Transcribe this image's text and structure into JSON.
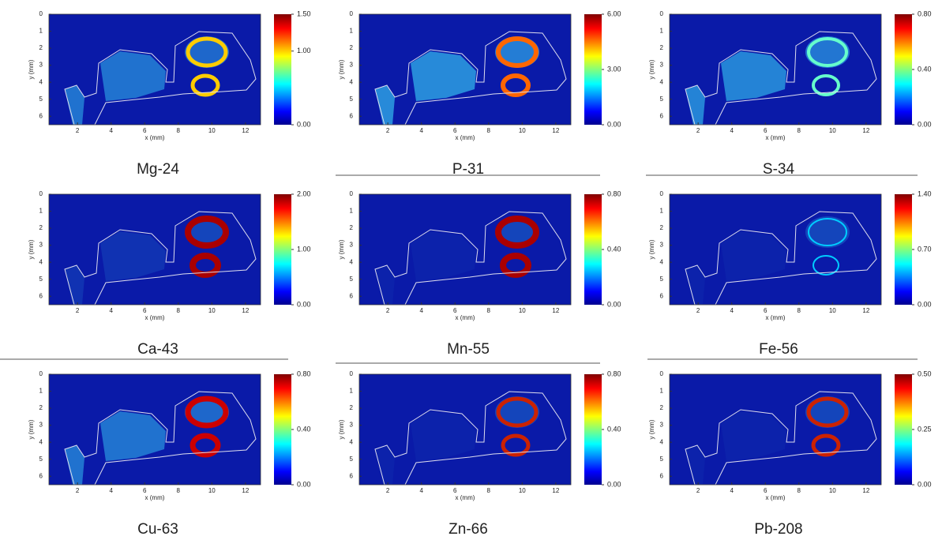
{
  "chart_data": [
    {
      "type": "heatmap",
      "title": "Mg-24",
      "xlabel": "x (mm)",
      "ylabel": "y (mm)",
      "xlim": [
        0.3,
        12.9
      ],
      "xticks": [
        2,
        4,
        6,
        8,
        10,
        12
      ],
      "ylim": [
        0,
        6.5
      ],
      "y_inverted": true,
      "yticks": [
        0,
        1,
        2,
        3,
        4,
        5,
        6
      ],
      "clim": [
        0,
        1.5
      ],
      "cticks": [
        {
          "value": 0,
          "label": "0.00"
        },
        {
          "value": 1,
          "label": "1.00"
        },
        {
          "value": 1.5,
          "label": "1.50"
        }
      ]
    },
    {
      "type": "heatmap",
      "title": "P-31",
      "xlabel": "x (mm)",
      "ylabel": "y (mm)",
      "xlim": [
        0.3,
        12.9
      ],
      "xticks": [
        2,
        4,
        6,
        8,
        10,
        12
      ],
      "ylim": [
        0,
        6.5
      ],
      "y_inverted": true,
      "yticks": [
        0,
        1,
        2,
        3,
        4,
        5,
        6
      ],
      "clim": [
        0,
        6
      ],
      "cticks": [
        {
          "value": 0,
          "label": "0.00"
        },
        {
          "value": 3,
          "label": "3.00"
        },
        {
          "value": 6,
          "label": "6.00"
        }
      ]
    },
    {
      "type": "heatmap",
      "title": "S-34",
      "xlabel": "x (mm)",
      "ylabel": "y (mm)",
      "xlim": [
        0.3,
        12.9
      ],
      "xticks": [
        2,
        4,
        6,
        8,
        10,
        12
      ],
      "ylim": [
        0,
        6.5
      ],
      "y_inverted": true,
      "yticks": [
        0,
        1,
        2,
        3,
        4,
        5,
        6
      ],
      "clim": [
        0,
        0.8
      ],
      "cticks": [
        {
          "value": 0,
          "label": "0.00"
        },
        {
          "value": 0.4,
          "label": "0.40"
        },
        {
          "value": 0.8,
          "label": "0.80"
        }
      ]
    },
    {
      "type": "heatmap",
      "title": "Ca-43",
      "xlabel": "x (mm)",
      "ylabel": "y (mm)",
      "xlim": [
        0.3,
        12.9
      ],
      "xticks": [
        2,
        4,
        6,
        8,
        10,
        12
      ],
      "ylim": [
        0,
        6.5
      ],
      "y_inverted": true,
      "yticks": [
        0,
        1,
        2,
        3,
        4,
        5,
        6
      ],
      "clim": [
        0,
        2
      ],
      "cticks": [
        {
          "value": 0,
          "label": "0.00"
        },
        {
          "value": 1,
          "label": "1.00"
        },
        {
          "value": 2,
          "label": "2.00"
        }
      ]
    },
    {
      "type": "heatmap",
      "title": "Mn-55",
      "xlabel": "x (mm)",
      "ylabel": "y (mm)",
      "xlim": [
        0.3,
        12.9
      ],
      "xticks": [
        2,
        4,
        6,
        8,
        10,
        12
      ],
      "ylim": [
        0,
        6.5
      ],
      "y_inverted": true,
      "yticks": [
        0,
        1,
        2,
        3,
        4,
        5,
        6
      ],
      "clim": [
        0,
        0.8
      ],
      "cticks": [
        {
          "value": 0,
          "label": "0.00"
        },
        {
          "value": 0.4,
          "label": "0.40"
        },
        {
          "value": 0.8,
          "label": "0.80"
        }
      ]
    },
    {
      "type": "heatmap",
      "title": "Fe-56",
      "xlabel": "x (mm)",
      "ylabel": "y (mm)",
      "xlim": [
        0.3,
        12.9
      ],
      "xticks": [
        2,
        4,
        6,
        8,
        10,
        12
      ],
      "ylim": [
        0,
        6.5
      ],
      "y_inverted": true,
      "yticks": [
        0,
        1,
        2,
        3,
        4,
        5,
        6
      ],
      "clim": [
        0,
        1.4
      ],
      "cticks": [
        {
          "value": 0,
          "label": "0.00"
        },
        {
          "value": 0.7,
          "label": "0.70"
        },
        {
          "value": 1.4,
          "label": "1.40"
        }
      ]
    },
    {
      "type": "heatmap",
      "title": "Cu-63",
      "xlabel": "x (mm)",
      "ylabel": "y (mm)",
      "xlim": [
        0.3,
        12.9
      ],
      "xticks": [
        2,
        4,
        6,
        8,
        10,
        12
      ],
      "ylim": [
        0,
        6.5
      ],
      "y_inverted": true,
      "yticks": [
        0,
        1,
        2,
        3,
        4,
        5,
        6
      ],
      "clim": [
        0,
        0.8
      ],
      "cticks": [
        {
          "value": 0,
          "label": "0.00"
        },
        {
          "value": 0.4,
          "label": "0.40"
        },
        {
          "value": 0.8,
          "label": "0.80"
        }
      ]
    },
    {
      "type": "heatmap",
      "title": "Zn-66",
      "xlabel": "x (mm)",
      "ylabel": "y (mm)",
      "xlim": [
        0.3,
        12.9
      ],
      "xticks": [
        2,
        4,
        6,
        8,
        10,
        12
      ],
      "ylim": [
        0,
        6.5
      ],
      "y_inverted": true,
      "yticks": [
        0,
        1,
        2,
        3,
        4,
        5,
        6
      ],
      "clim": [
        0,
        0.8
      ],
      "cticks": [
        {
          "value": 0,
          "label": "0.00"
        },
        {
          "value": 0.4,
          "label": "0.40"
        },
        {
          "value": 0.8,
          "label": "0.80"
        }
      ]
    },
    {
      "type": "heatmap",
      "title": "Pb-208",
      "xlabel": "x (mm)",
      "ylabel": "y (mm)",
      "xlim": [
        0.3,
        12.9
      ],
      "xticks": [
        2,
        4,
        6,
        8,
        10,
        12
      ],
      "ylim": [
        0,
        6.5
      ],
      "y_inverted": true,
      "yticks": [
        0,
        1,
        2,
        3,
        4,
        5,
        6
      ],
      "clim": [
        0,
        0.5
      ],
      "cticks": [
        {
          "value": 0,
          "label": "0.00"
        },
        {
          "value": 0.25,
          "label": "0.25"
        },
        {
          "value": 0.5,
          "label": "0.50"
        }
      ]
    }
  ]
}
